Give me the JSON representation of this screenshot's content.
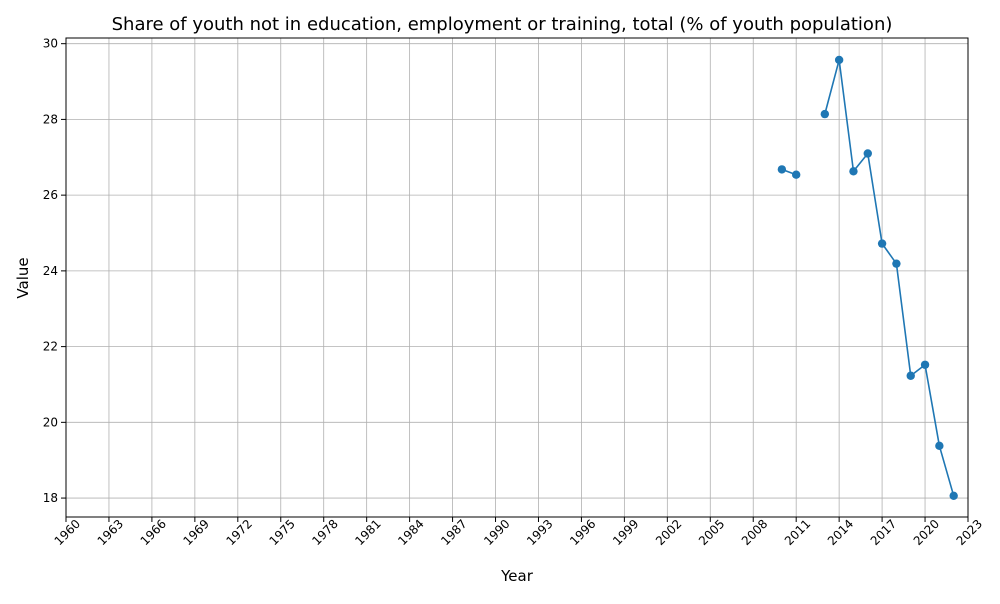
{
  "chart_data": {
    "type": "line",
    "title": "Share of youth not in education, employment or training, total (% of youth population)",
    "xlabel": "Year",
    "ylabel": "Value",
    "xlim": [
      1960,
      2023
    ],
    "ylim": [
      17.5,
      30.15
    ],
    "x_ticks": [
      1960,
      1963,
      1966,
      1969,
      1972,
      1975,
      1978,
      1981,
      1984,
      1987,
      1990,
      1993,
      1996,
      1999,
      2002,
      2005,
      2008,
      2011,
      2014,
      2017,
      2020,
      2023
    ],
    "y_ticks": [
      18,
      20,
      22,
      24,
      26,
      28,
      30
    ],
    "grid": true,
    "series": [
      {
        "color": "#1f77b4",
        "marker": "circle",
        "points": [
          {
            "x": 2010,
            "y": 26.68
          },
          {
            "x": 2011,
            "y": 26.54
          },
          {
            "x": 2012,
            "y": null
          },
          {
            "x": 2013,
            "y": 28.14
          },
          {
            "x": 2014,
            "y": 29.57
          },
          {
            "x": 2015,
            "y": 26.63
          },
          {
            "x": 2016,
            "y": 27.1
          },
          {
            "x": 2017,
            "y": 24.72
          },
          {
            "x": 2018,
            "y": 24.19
          },
          {
            "x": 2019,
            "y": 21.23
          },
          {
            "x": 2020,
            "y": 21.52
          },
          {
            "x": 2021,
            "y": 19.38
          },
          {
            "x": 2022,
            "y": 18.06
          }
        ]
      }
    ]
  }
}
